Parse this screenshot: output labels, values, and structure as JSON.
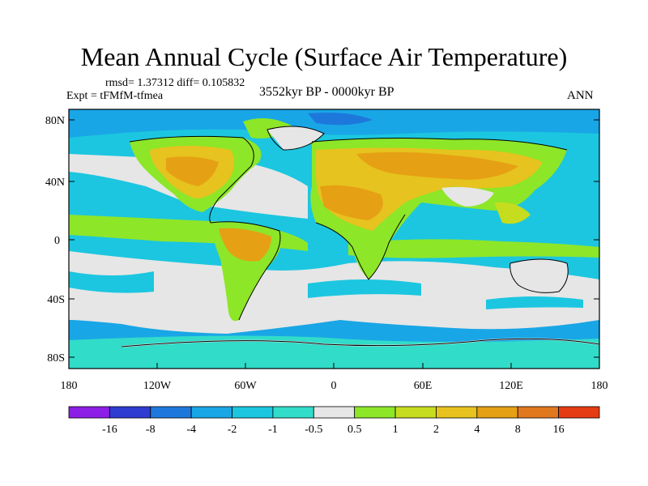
{
  "header": {
    "title": "Mean Annual Cycle (Surface Air Temperature)",
    "stats": "rmsd= 1.37312 diff= 0.105832",
    "experiment": "Expt = tFMfM-tfmea",
    "period": "3552kyr BP - 0000kyr BP",
    "season": "ANN"
  },
  "map": {
    "lat_ticks": [
      "80N",
      "40N",
      "0",
      "40S",
      "80S"
    ],
    "lon_ticks": [
      "180",
      "120W",
      "60W",
      "0",
      "60E",
      "120E",
      "180"
    ]
  },
  "colorbar": {
    "colors": [
      "#8c1ee6",
      "#2f3cd2",
      "#1e78dc",
      "#19a6e6",
      "#1cc6e0",
      "#31dcc9",
      "#e6e6e6",
      "#8de628",
      "#c6dc1e",
      "#e6c31e",
      "#e6a014",
      "#e0781e",
      "#e63c14"
    ],
    "labels": [
      "-16",
      "-8",
      "-4",
      "-2",
      "-1",
      "-0.5",
      "0.5",
      "1",
      "2",
      "4",
      "8",
      "16"
    ]
  }
}
